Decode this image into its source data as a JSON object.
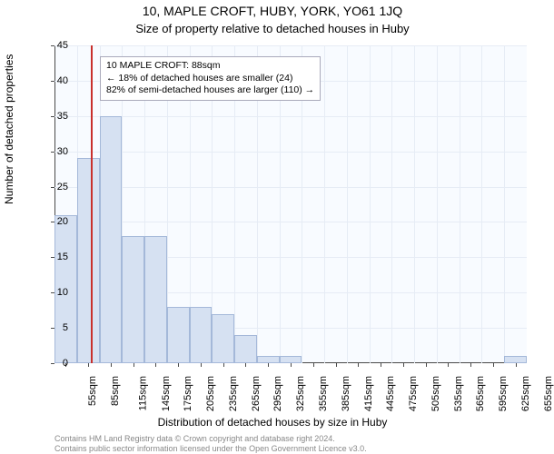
{
  "title": "10, MAPLE CROFT, HUBY, YORK, YO61 1JQ",
  "subtitle": "Size of property relative to detached houses in Huby",
  "ylabel": "Number of detached properties",
  "xlabel": "Distribution of detached houses by size in Huby",
  "footer1": "Contains HM Land Registry data © Crown copyright and database right 2024.",
  "footer2": "Contains public sector information licensed under the Open Government Licence v3.0.",
  "chart": {
    "type": "histogram",
    "background_color": "#f8fbff",
    "grid_color": "#e6ecf5",
    "bar_fill": "#d6e1f2",
    "bar_border": "#a4b8d9",
    "marker_color": "#c9302c",
    "marker_x": 88,
    "xmin": 40,
    "xmax": 670,
    "ymin": 0,
    "ymax": 45,
    "ytick_step": 5,
    "x_ticks": [
      55,
      85,
      115,
      145,
      175,
      205,
      235,
      265,
      295,
      325,
      355,
      385,
      415,
      445,
      475,
      505,
      535,
      565,
      595,
      625,
      655
    ],
    "x_tick_suffix": "sqm",
    "bin_width": 30,
    "bars": [
      {
        "x0": 40,
        "count": 21
      },
      {
        "x0": 70,
        "count": 29
      },
      {
        "x0": 100,
        "count": 35
      },
      {
        "x0": 130,
        "count": 18
      },
      {
        "x0": 160,
        "count": 18
      },
      {
        "x0": 190,
        "count": 8
      },
      {
        "x0": 220,
        "count": 8
      },
      {
        "x0": 250,
        "count": 7
      },
      {
        "x0": 280,
        "count": 4
      },
      {
        "x0": 310,
        "count": 1
      },
      {
        "x0": 340,
        "count": 1
      },
      {
        "x0": 370,
        "count": 0
      },
      {
        "x0": 400,
        "count": 0
      },
      {
        "x0": 430,
        "count": 0
      },
      {
        "x0": 460,
        "count": 0
      },
      {
        "x0": 490,
        "count": 0
      },
      {
        "x0": 520,
        "count": 0
      },
      {
        "x0": 550,
        "count": 0
      },
      {
        "x0": 580,
        "count": 0
      },
      {
        "x0": 610,
        "count": 0
      },
      {
        "x0": 640,
        "count": 1
      }
    ]
  },
  "annotation": {
    "line1": "10 MAPLE CROFT: 88sqm",
    "line2": "← 18% of detached houses are smaller (24)",
    "line3": "82% of semi-detached houses are larger (110) →"
  }
}
